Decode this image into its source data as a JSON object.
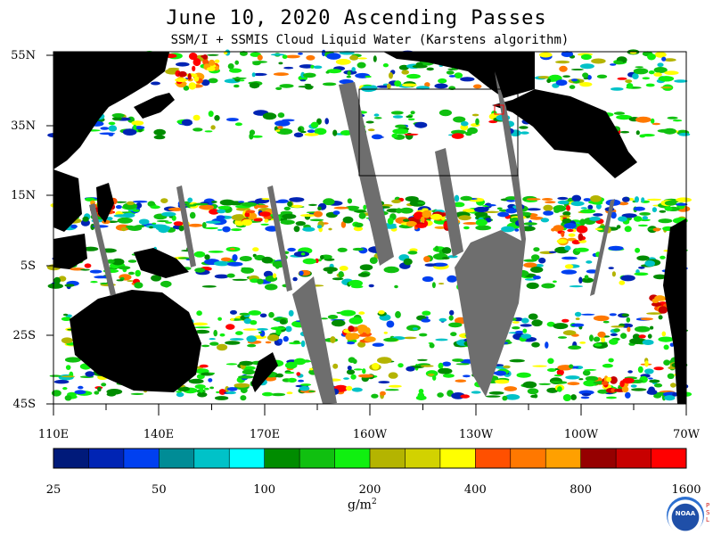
{
  "title": "June 10, 2020  Ascending Passes",
  "subtitle": "SSM/I + SSMIS Cloud Liquid Water (Karstens algorithm)",
  "map": {
    "lat_labels": [
      "55N",
      "35N",
      "15N",
      "5S",
      "25S",
      "45S"
    ],
    "lon_labels": [
      "110E",
      "140E",
      "170E",
      "160W",
      "130W",
      "100W",
      "70W"
    ],
    "colors": {
      "land": "#000000",
      "no_data": "#6e6e6e",
      "ocean_clear": "#ffffff",
      "box": "#000000"
    }
  },
  "colorbar": {
    "colors": [
      "#001a7a",
      "#0024b4",
      "#0040f0",
      "#008c96",
      "#00c2c8",
      "#00ffff",
      "#008c00",
      "#10c010",
      "#10f010",
      "#b4b400",
      "#d2d200",
      "#ffff00",
      "#ff5000",
      "#ff7800",
      "#ffa000",
      "#960000",
      "#c80000",
      "#ff0000"
    ],
    "tick_labels": [
      "25",
      "50",
      "100",
      "200",
      "400",
      "800",
      "1600"
    ],
    "units": "g/m",
    "units_exp": "2"
  },
  "logo": {
    "text": "NOAA",
    "side_letters": [
      "P",
      "S",
      "L"
    ]
  }
}
